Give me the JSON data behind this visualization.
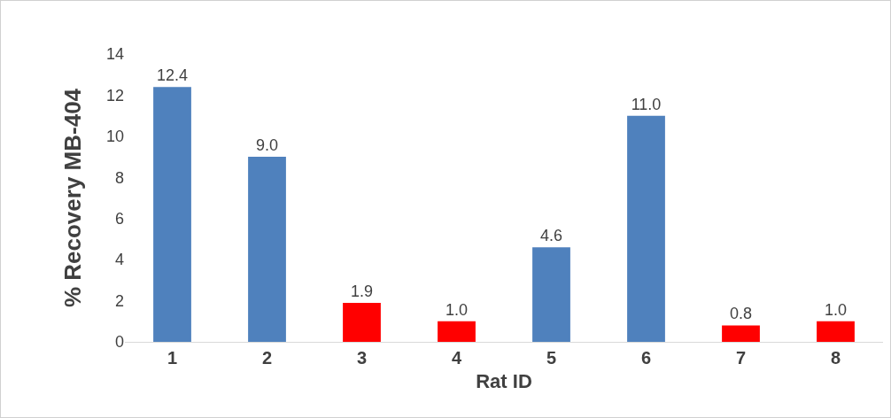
{
  "chart_data": {
    "type": "bar",
    "xlabel": "Rat ID",
    "ylabel": "% Recovery MB-404",
    "categories": [
      "1",
      "2",
      "3",
      "4",
      "5",
      "6",
      "7",
      "8"
    ],
    "values": [
      12.4,
      9.0,
      1.9,
      1.0,
      4.6,
      11.0,
      0.8,
      1.0
    ],
    "colors": [
      "#4f81bd",
      "#4f81bd",
      "#ff0000",
      "#ff0000",
      "#4f81bd",
      "#4f81bd",
      "#ff0000",
      "#ff0000"
    ],
    "value_labels": [
      "12.4",
      "9.0",
      "1.9",
      "1.0",
      "4.6",
      "11.0",
      "0.8",
      "1.0"
    ],
    "ylim": [
      0,
      14
    ],
    "yticks": [
      0,
      2,
      4,
      6,
      8,
      10,
      12,
      14
    ],
    "grid": false
  }
}
